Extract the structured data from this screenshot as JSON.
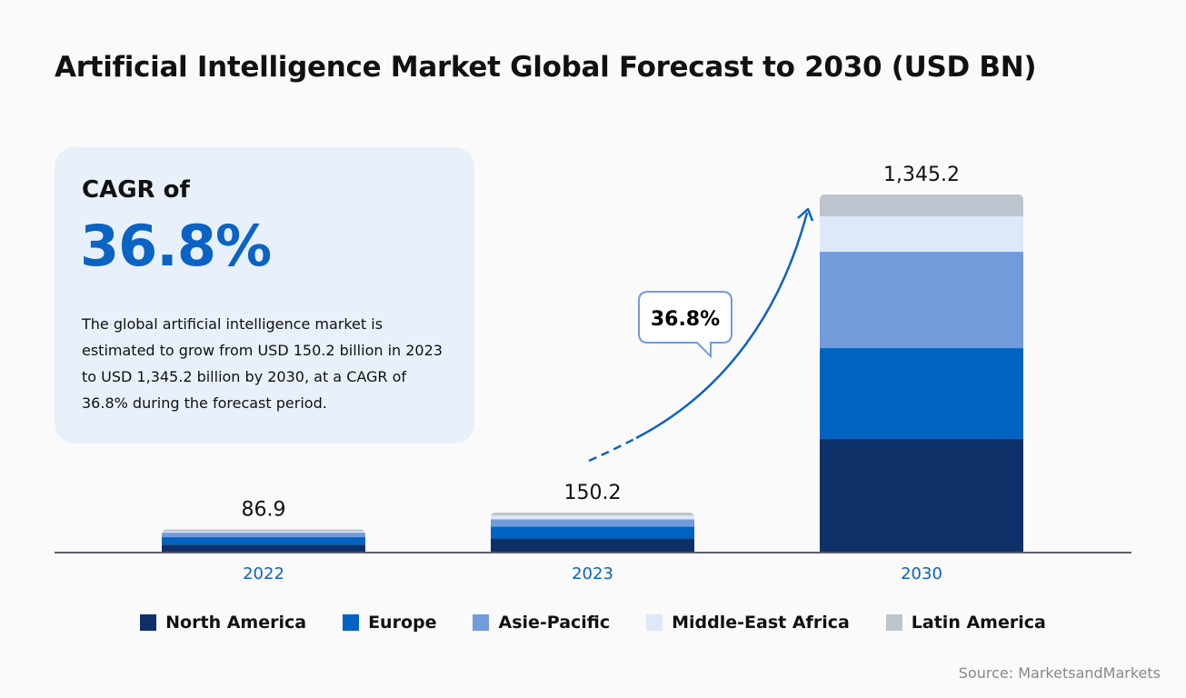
{
  "title": "Artificial Intelligence Market Global Forecast to 2030 (USD BN)",
  "cagr_box": {
    "label": "CAGR of",
    "value": "36.8%",
    "description": "The global artificial intelligence market is estimated to grow from USD 150.2 billion in 2023 to USD 1,345.2 billion by 2030, at a CAGR of 36.8% during the forecast period."
  },
  "callout": "36.8%",
  "source": "Source: MarketsandMarkets",
  "chart_data": {
    "type": "bar",
    "stacked": true,
    "title": "Artificial Intelligence Market Global Forecast to 2030 (USD BN)",
    "categories": [
      "2022",
      "2023",
      "2030"
    ],
    "totals": [
      "86.9",
      "150.2",
      "1,345.2"
    ],
    "total_values": [
      86.9,
      150.2,
      1345.2
    ],
    "series": [
      {
        "name": "North America",
        "color": "#0d3068",
        "values": [
          30.0,
          52.7,
          427
        ]
      },
      {
        "name": "Europe",
        "color": "#0063c1",
        "values": [
          27.9,
          44.5,
          341
        ]
      },
      {
        "name": "Asie-Pacific",
        "color": "#729bdc",
        "values": [
          17.0,
          28.0,
          362
        ]
      },
      {
        "name": "Middle-East Africa",
        "color": "#dde8f8",
        "values": [
          4.0,
          14.0,
          133
        ]
      },
      {
        "name": "Latin America",
        "color": "#bec4cd",
        "values": [
          8.0,
          11.0,
          82.2
        ]
      }
    ],
    "legend_position": "bottom",
    "grid": false,
    "category_label_color": "#0b63c4"
  }
}
